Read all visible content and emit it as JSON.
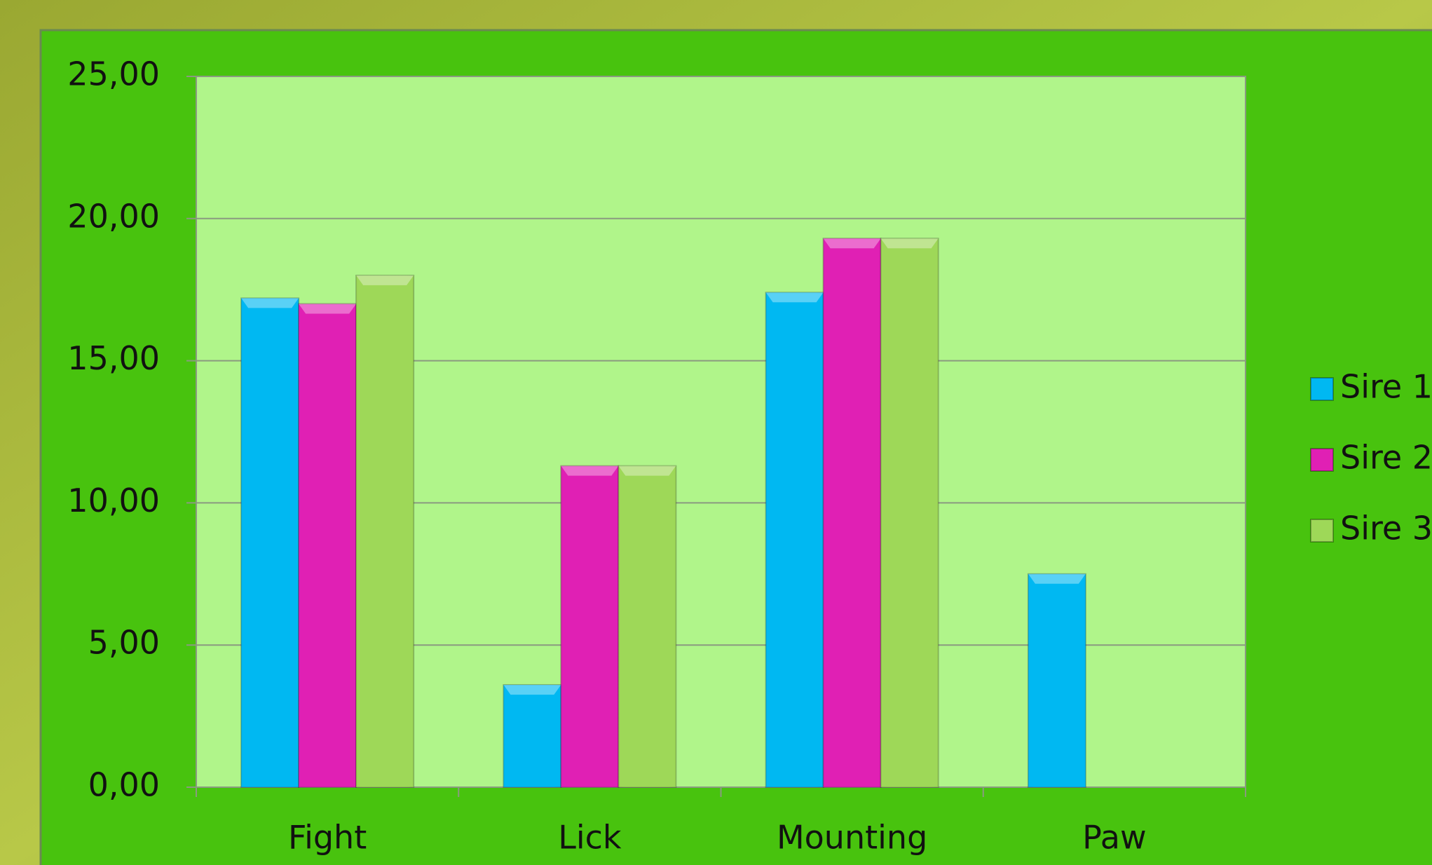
{
  "chart_data": {
    "type": "bar",
    "categories": [
      "Fight",
      "Lick",
      "Mounting",
      "Paw"
    ],
    "series": [
      {
        "name": "Sire 1",
        "color": "#00b8f2",
        "values": [
          17.2,
          3.6,
          17.4,
          7.5
        ]
      },
      {
        "name": "Sire 2",
        "color": "#e020b4",
        "values": [
          17.0,
          11.3,
          19.3,
          0
        ]
      },
      {
        "name": "Sire 3",
        "color": "#9ed858",
        "values": [
          18.0,
          11.3,
          19.3,
          0
        ]
      }
    ],
    "ylim": [
      0,
      25
    ],
    "yticks": [
      {
        "value": 0,
        "label": "0,00"
      },
      {
        "value": 5,
        "label": "5,00"
      },
      {
        "value": 10,
        "label": "10,00"
      },
      {
        "value": 15,
        "label": "15,00"
      },
      {
        "value": 20,
        "label": "20,00"
      },
      {
        "value": 25,
        "label": "25,00"
      }
    ],
    "grid": true,
    "legend": "right"
  }
}
